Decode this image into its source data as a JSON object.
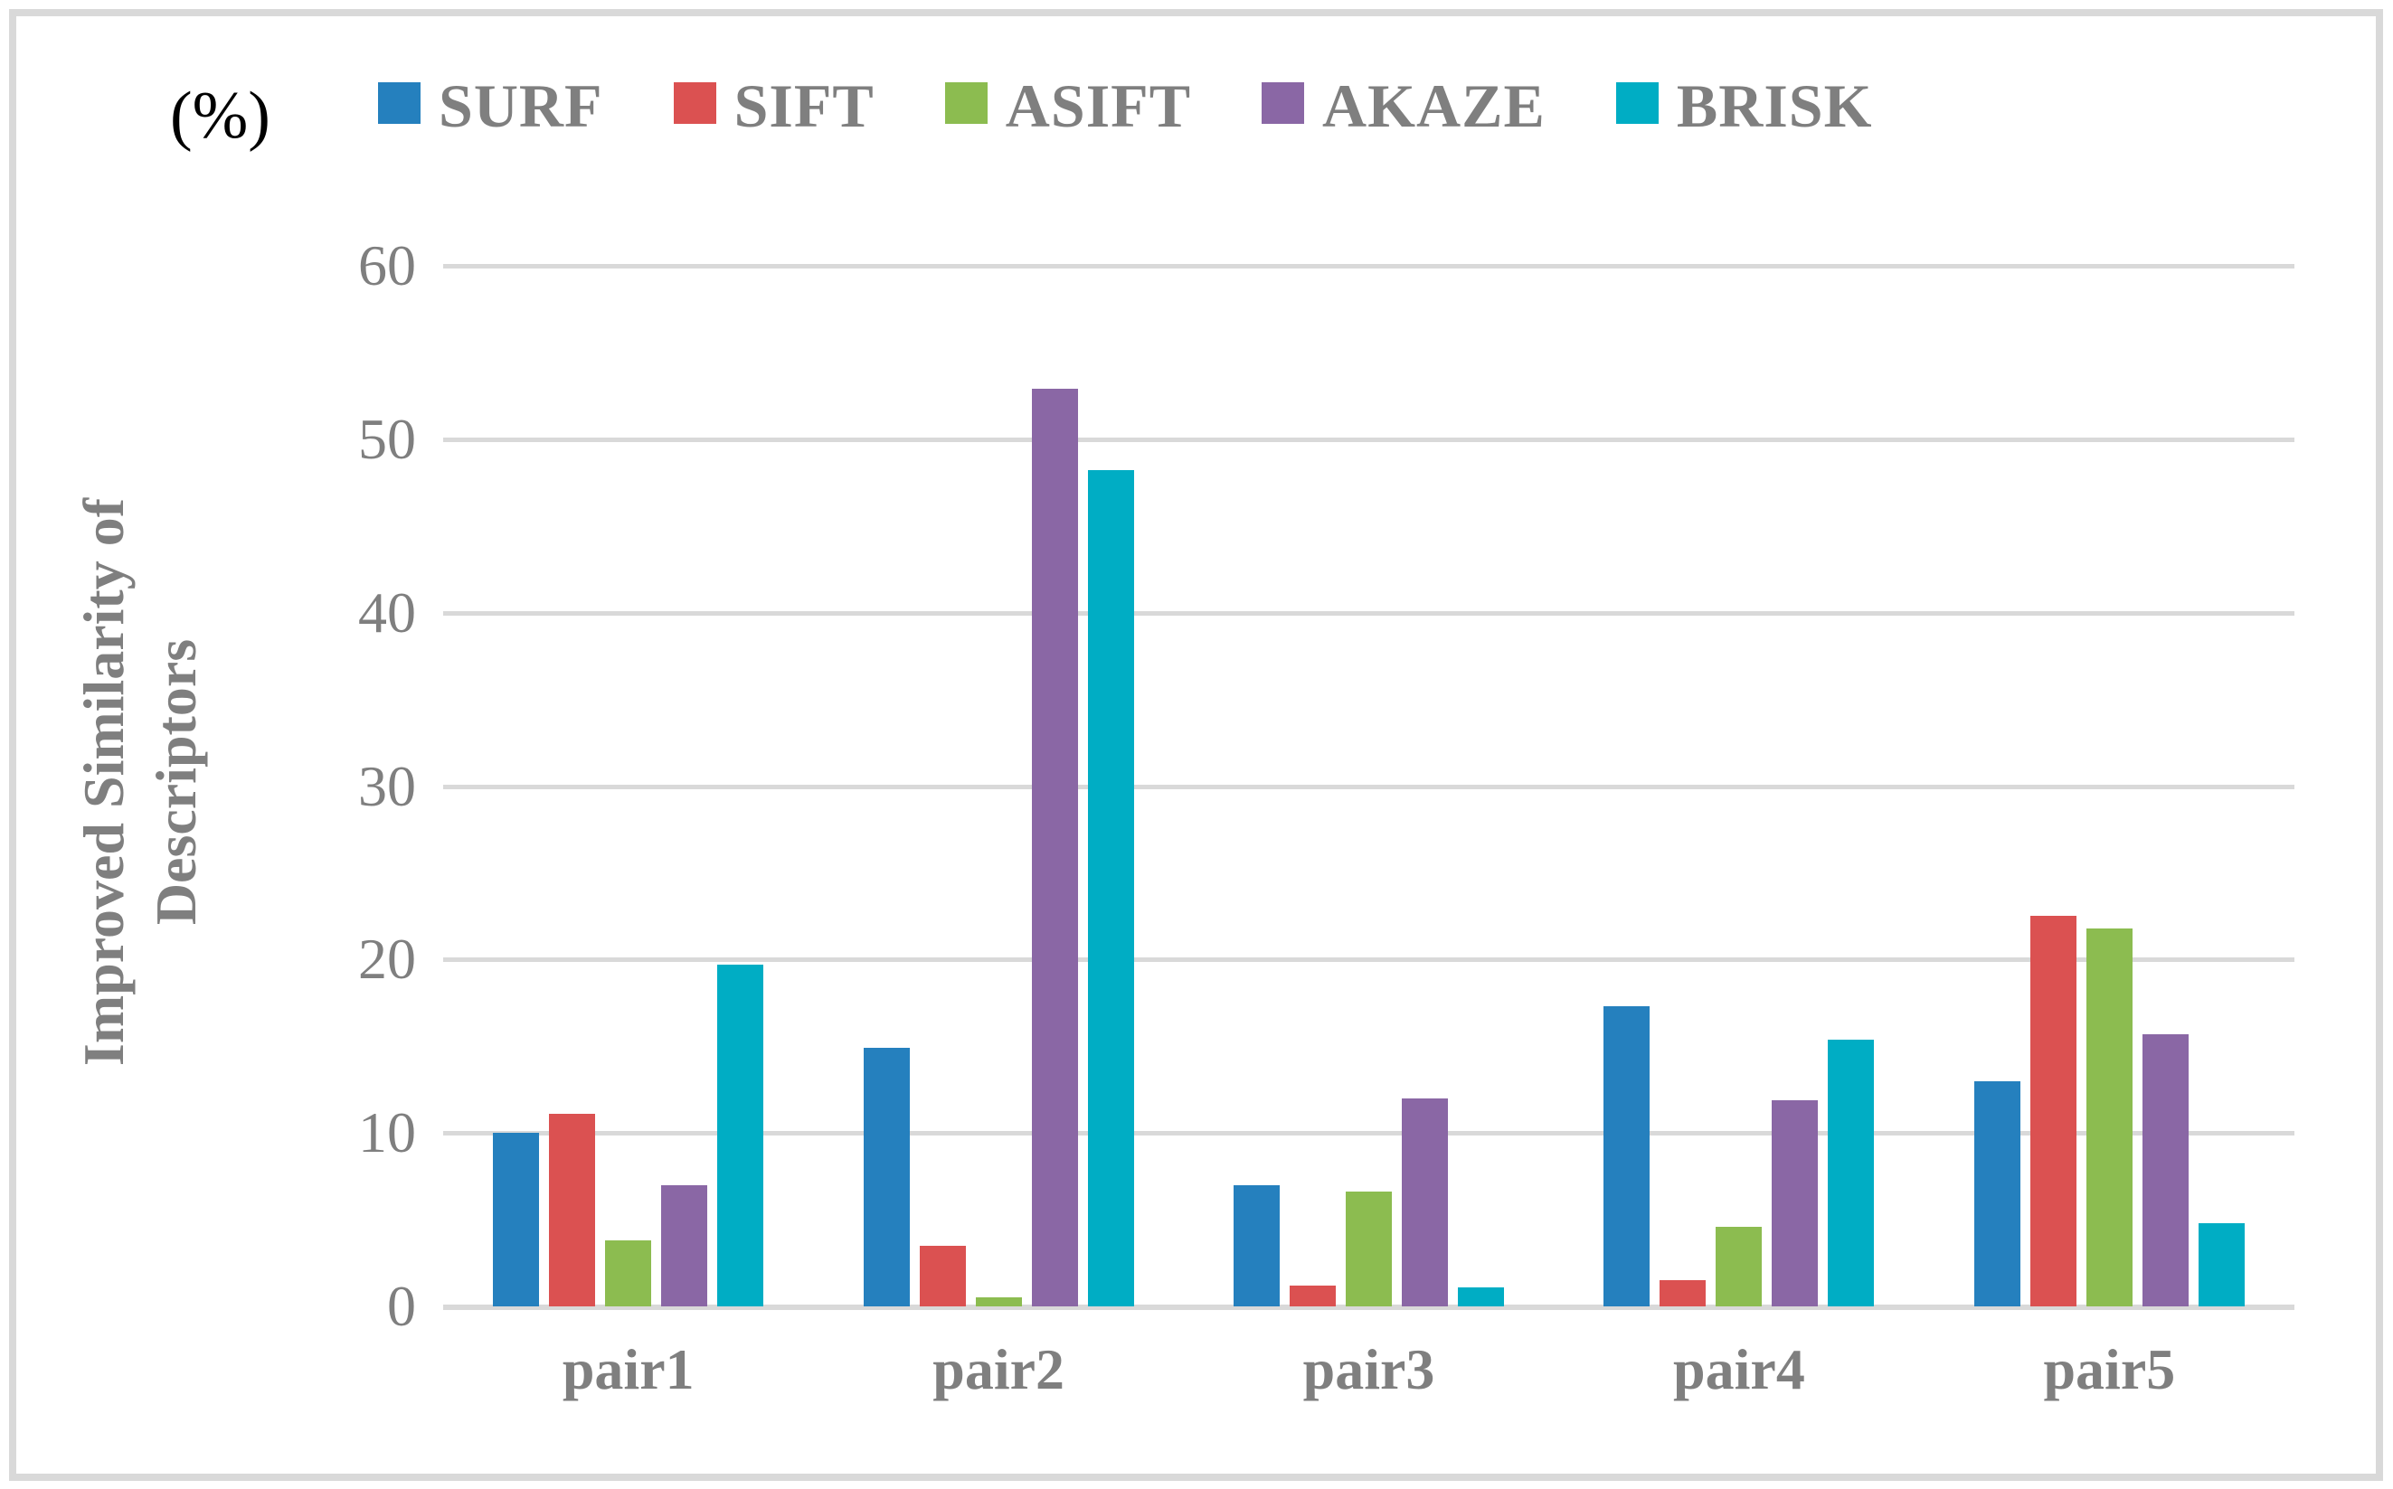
{
  "figure": {
    "unit_label": "(%)",
    "border_color": "#d9d9d9",
    "gridline_color": "#d9d9d9",
    "text_color": "#7f7f7f"
  },
  "chart_data": {
    "type": "bar",
    "title": "",
    "xlabel": "",
    "ylabel": "Improved Similarity of Descriptors",
    "ylabel_lines": [
      "Improved Similarity of",
      "Descriptors"
    ],
    "unit": "(%)",
    "categories": [
      "pair1",
      "pair2",
      "pair3",
      "pair4",
      "pair5"
    ],
    "series": [
      {
        "name": "SURF",
        "color": "#2580be",
        "values": [
          10.0,
          14.9,
          7.0,
          17.3,
          13.0
        ]
      },
      {
        "name": "SIFT",
        "color": "#db5151",
        "values": [
          11.1,
          3.5,
          1.2,
          1.5,
          22.5
        ]
      },
      {
        "name": "ASIFT",
        "color": "#8cbc50",
        "values": [
          3.8,
          0.5,
          6.6,
          4.6,
          21.8
        ]
      },
      {
        "name": "AKAZE",
        "color": "#8a67a5",
        "values": [
          7.0,
          52.9,
          12.0,
          11.9,
          15.7
        ]
      },
      {
        "name": "BRISK",
        "color": "#00adc4",
        "values": [
          19.7,
          48.2,
          1.1,
          15.4,
          4.8
        ]
      }
    ],
    "ylim": [
      0,
      60
    ],
    "yticks": [
      0,
      10,
      20,
      30,
      40,
      50,
      60
    ],
    "grid": true,
    "legend_position": "top"
  }
}
